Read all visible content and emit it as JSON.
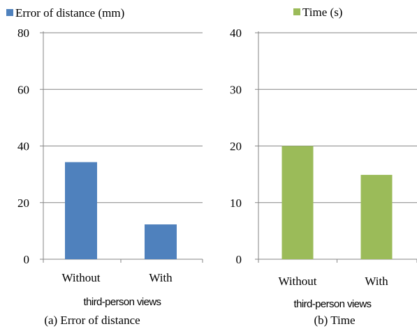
{
  "chart_data": [
    {
      "type": "bar",
      "legend": "Error of distance (mm)",
      "categories": [
        "Without",
        "With"
      ],
      "values": [
        34.3,
        12.3
      ],
      "ylim": [
        0,
        80
      ],
      "yticks": [
        0,
        20,
        40,
        60,
        80
      ],
      "grid": true,
      "legend_position": "top",
      "xlabel": "third-person views",
      "caption": "(a) Error of distance",
      "color": "#4f81bd"
    },
    {
      "type": "bar",
      "legend": "Time (s)",
      "categories": [
        "Without",
        "With"
      ],
      "values": [
        20.0,
        14.9
      ],
      "ylim": [
        0,
        40
      ],
      "yticks": [
        0,
        10,
        20,
        30,
        40
      ],
      "grid": true,
      "legend_position": "top",
      "xlabel": "third-person views",
      "caption": "(b) Time",
      "color": "#9bbb59"
    }
  ]
}
